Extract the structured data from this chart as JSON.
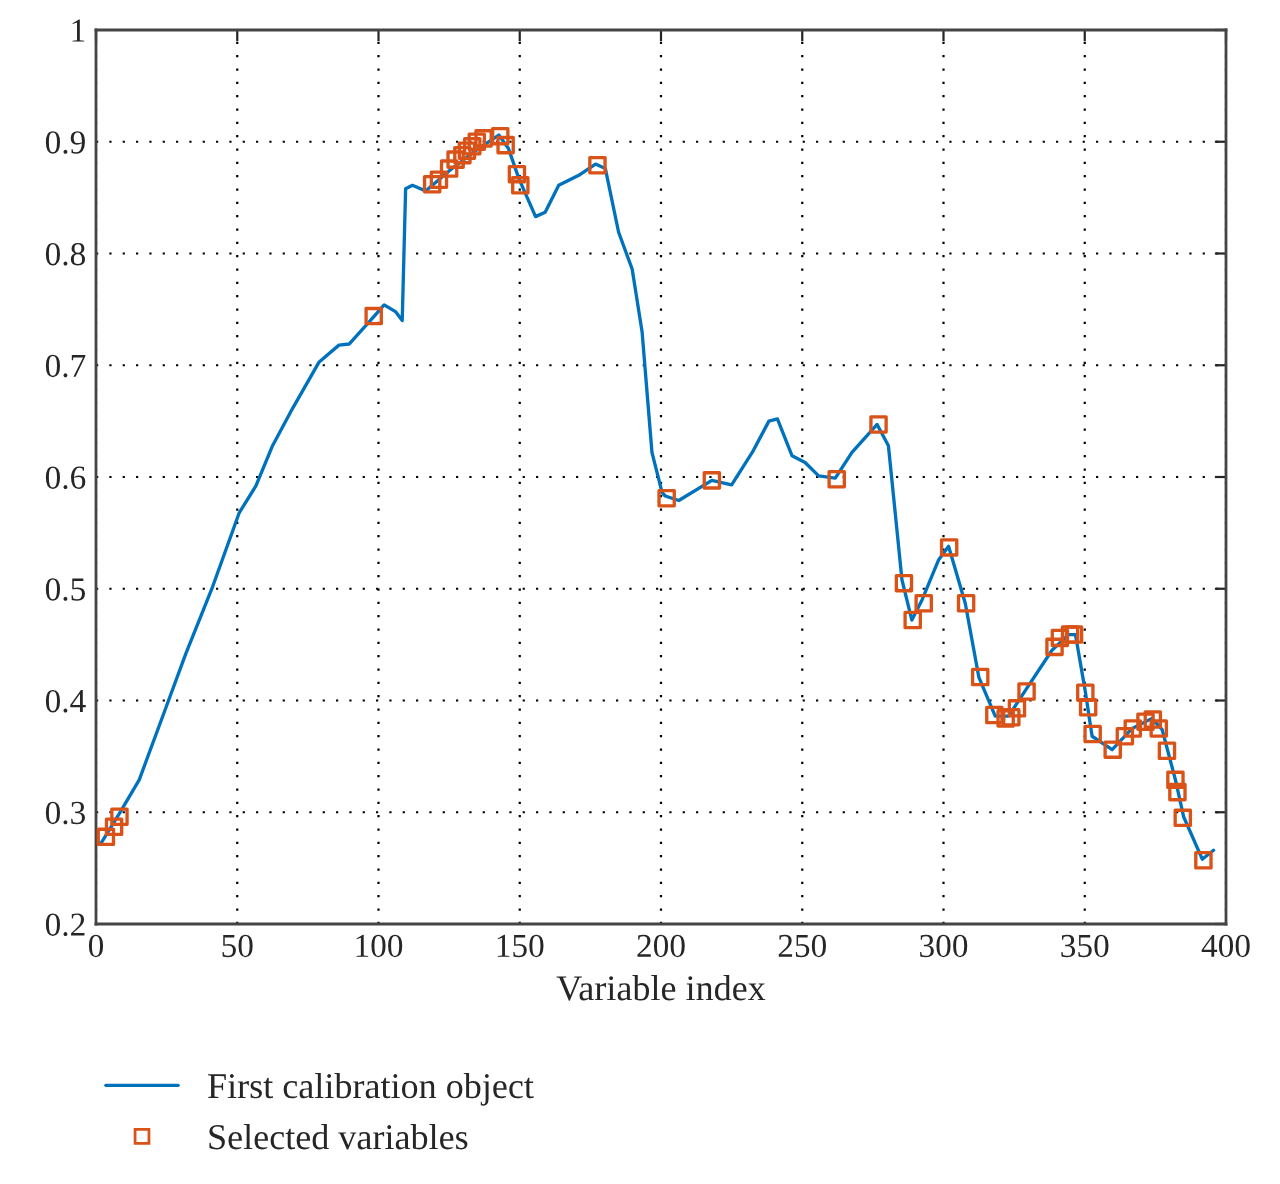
{
  "chart_data": {
    "type": "line",
    "xlabel": "Variable index",
    "xlim": [
      0,
      400
    ],
    "xticks": [
      0,
      50,
      100,
      150,
      200,
      250,
      300,
      350,
      400
    ],
    "ylim": [
      0.2,
      1
    ],
    "yticks": [
      0.2,
      0.3,
      0.4,
      0.5,
      0.6,
      0.7,
      0.8,
      0.9,
      1
    ],
    "grid": true,
    "legend": "bottom left",
    "series": [
      {
        "name": "First calibration object",
        "color": "#0072bd",
        "marker": "none",
        "line_style": "solid",
        "x": [
          1.7,
          8.3,
          15.3,
          24.8,
          31.8,
          41.3,
          50.7,
          56.6,
          62.5,
          69.5,
          79,
          86,
          89.6,
          97.8,
          102,
          106,
          108.4,
          109.6,
          112,
          116.7,
          126,
          135.5,
          142.6,
          146,
          149.7,
          155.6,
          159,
          163.8,
          170.9,
          176.8,
          180.3,
          185,
          189.8,
          193.3,
          196.8,
          200.4,
          201.5,
          206.3,
          218,
          225,
          232.3,
          238.2,
          241.2,
          246.4,
          251,
          255.8,
          261.7,
          267.6,
          276.5,
          280.5,
          285.3,
          288.8,
          292.4,
          298.3,
          301.8,
          307.7,
          312.5,
          318.3,
          323,
          329,
          338.4,
          344.3,
          346.7,
          350.2,
          352.6,
          359.7,
          366.8,
          373.8,
          377.4,
          382.1,
          385,
          391.6,
          395.6
        ],
        "values": [
          0.272,
          0.299,
          0.329,
          0.394,
          0.442,
          0.502,
          0.568,
          0.592,
          0.628,
          0.661,
          0.703,
          0.718,
          0.719,
          0.742,
          0.754,
          0.748,
          0.74,
          0.858,
          0.861,
          0.856,
          0.876,
          0.894,
          0.906,
          0.894,
          0.867,
          0.833,
          0.837,
          0.861,
          0.87,
          0.88,
          0.876,
          0.819,
          0.786,
          0.73,
          0.622,
          0.586,
          0.583,
          0.579,
          0.597,
          0.593,
          0.622,
          0.65,
          0.652,
          0.619,
          0.613,
          0.601,
          0.599,
          0.622,
          0.647,
          0.628,
          0.508,
          0.472,
          0.49,
          0.526,
          0.538,
          0.487,
          0.421,
          0.386,
          0.386,
          0.409,
          0.445,
          0.459,
          0.459,
          0.408,
          0.368,
          0.356,
          0.375,
          0.384,
          0.374,
          0.329,
          0.296,
          0.258,
          0.266
        ]
      },
      {
        "name": "Selected variables",
        "type": "scatter",
        "color": "#d95319",
        "marker": "square",
        "x": [
          3.5,
          6.4,
          8.3,
          98.3,
          119,
          121.4,
          125,
          127.3,
          129.7,
          131.3,
          133.2,
          134.8,
          137.2,
          143.1,
          145,
          149,
          150.2,
          177.5,
          202,
          218,
          262.2,
          277,
          286,
          289.1,
          293,
          302,
          308,
          313,
          318,
          322,
          324,
          326,
          329.4,
          339.3,
          341.2,
          344.8,
          346.2,
          350.2,
          351.2,
          352.8,
          359.9,
          364.2,
          367,
          371.5,
          374.1,
          376.2,
          379.1,
          382.1,
          382.8,
          384.7,
          392
        ],
        "values": [
          0.278,
          0.287,
          0.296,
          0.744,
          0.862,
          0.866,
          0.876,
          0.884,
          0.888,
          0.892,
          0.896,
          0.9,
          0.903,
          0.905,
          0.897,
          0.871,
          0.861,
          0.879,
          0.581,
          0.597,
          0.598,
          0.647,
          0.505,
          0.472,
          0.487,
          0.537,
          0.487,
          0.421,
          0.387,
          0.384,
          0.385,
          0.393,
          0.408,
          0.448,
          0.456,
          0.459,
          0.459,
          0.407,
          0.394,
          0.37,
          0.356,
          0.368,
          0.375,
          0.381,
          0.383,
          0.375,
          0.355,
          0.329,
          0.318,
          0.295,
          0.257
        ]
      }
    ]
  }
}
